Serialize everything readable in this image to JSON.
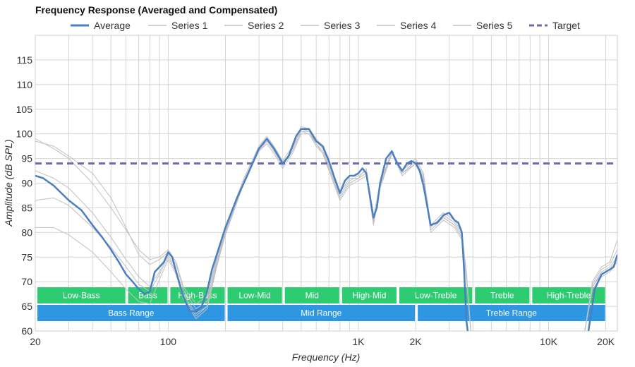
{
  "chart_data": {
    "type": "line",
    "title": "Frequency Response (Averaged and Compensated)",
    "xlabel": "Frequency (Hz)",
    "ylabel": "Amplitude (dB SPL)",
    "x_scale": "log",
    "xlim": [
      20,
      23000
    ],
    "ylim": [
      60,
      120
    ],
    "x_ticks": [
      {
        "value": 20,
        "label": "20"
      },
      {
        "value": 100,
        "label": "100"
      },
      {
        "value": 1000,
        "label": "1K"
      },
      {
        "value": 2000,
        "label": "2K"
      },
      {
        "value": 10000,
        "label": "10K"
      },
      {
        "value": 20000,
        "label": "20K"
      }
    ],
    "y_ticks": [
      60,
      65,
      70,
      75,
      80,
      85,
      90,
      95,
      100,
      105,
      110,
      115
    ],
    "grid": true,
    "legend_position": "top",
    "colors": {
      "average": "#4a7fc1",
      "series": "#c0c0c0",
      "target": "#6b6ba8",
      "band_green": "#2ecc71",
      "band_blue": "#2f96e2"
    },
    "series": [
      {
        "name": "Average",
        "x": [
          20,
          22,
          25,
          30,
          35,
          40,
          45,
          50,
          55,
          60,
          65,
          70,
          75,
          80,
          85,
          90,
          95,
          100,
          105,
          110,
          120,
          130,
          140,
          150,
          160,
          170,
          180,
          200,
          230,
          260,
          300,
          330,
          360,
          400,
          430,
          470,
          500,
          550,
          600,
          650,
          700,
          750,
          800,
          850,
          900,
          950,
          1000,
          1050,
          1100,
          1200,
          1250,
          1300,
          1400,
          1500,
          1600,
          1700,
          1800,
          1900,
          2000,
          2100,
          2200,
          2400,
          2600,
          2800,
          3000,
          3200,
          3350,
          3500,
          3600,
          3700,
          3900,
          15500,
          16500,
          17500,
          19000,
          20000,
          21000,
          22000,
          23000
        ],
        "y": [
          91.5,
          91.0,
          89.5,
          86.5,
          84.5,
          81.5,
          79.0,
          76.5,
          74.0,
          71.5,
          70.0,
          68.5,
          67.5,
          68.0,
          72.0,
          73.0,
          74.0,
          76.0,
          75.0,
          72.0,
          67.0,
          64.0,
          64.0,
          65.0,
          68.0,
          72.5,
          75.5,
          81.0,
          87.0,
          91.5,
          97.0,
          99.0,
          97.0,
          94.0,
          95.5,
          99.5,
          101.0,
          101.0,
          98.5,
          97.5,
          94.5,
          91.0,
          88.0,
          90.5,
          91.5,
          91.5,
          92.0,
          93.0,
          92.0,
          83.0,
          85.0,
          90.0,
          95.0,
          96.5,
          94.0,
          92.5,
          94.0,
          94.5,
          94.0,
          92.5,
          89.5,
          81.5,
          82.0,
          83.5,
          84.0,
          82.5,
          82.0,
          80.0,
          72.0,
          62.0,
          55.0,
          55.0,
          62.0,
          68.5,
          71.5,
          72.0,
          72.5,
          73.0,
          75.5
        ]
      },
      {
        "name": "Series 1",
        "x": [
          20,
          25,
          30,
          40,
          50,
          60,
          70,
          80,
          90,
          100,
          110,
          120,
          140,
          160,
          180,
          200,
          250,
          300,
          330,
          360,
          400,
          450,
          500,
          550,
          600,
          650,
          700,
          800,
          900,
          1000,
          1100,
          1200,
          1300,
          1500,
          1700,
          2000,
          2200,
          2400,
          2800,
          3200,
          3500,
          3700,
          3900,
          15500,
          17000,
          19000,
          21000,
          23000
        ],
        "y": [
          99.0,
          97.0,
          95.0,
          90.0,
          85.0,
          80.5,
          76.5,
          74.5,
          75.0,
          76.5,
          74.0,
          69.0,
          65.5,
          67.0,
          75.0,
          81.0,
          91.0,
          97.5,
          99.5,
          97.5,
          94.5,
          97.5,
          101.5,
          101.0,
          99.0,
          97.5,
          94.0,
          88.0,
          91.0,
          91.0,
          93.0,
          83.0,
          90.0,
          96.5,
          92.5,
          95.0,
          92.0,
          81.5,
          84.0,
          82.5,
          80.0,
          72.0,
          60.0,
          60.0,
          70.0,
          73.0,
          74.0,
          78.5
        ]
      },
      {
        "name": "Series 2",
        "x": [
          20,
          25,
          30,
          40,
          50,
          60,
          70,
          80,
          90,
          100,
          110,
          120,
          140,
          160,
          180,
          200,
          250,
          300,
          330,
          360,
          400,
          450,
          500,
          550,
          600,
          650,
          700,
          800,
          900,
          1000,
          1100,
          1200,
          1300,
          1500,
          1700,
          2000,
          2200,
          2400,
          2800,
          3200,
          3500,
          3700,
          3900,
          15500,
          17000,
          19000,
          21000,
          23000
        ],
        "y": [
          98.5,
          97.5,
          95.5,
          92.0,
          87.0,
          81.0,
          75.5,
          73.5,
          74.5,
          76.0,
          73.5,
          68.5,
          64.5,
          66.0,
          74.5,
          80.5,
          90.5,
          97.0,
          99.0,
          97.0,
          94.0,
          97.0,
          101.0,
          100.5,
          98.5,
          97.0,
          93.5,
          87.5,
          90.5,
          91.5,
          92.5,
          82.5,
          89.5,
          96.0,
          92.0,
          94.5,
          91.5,
          81.0,
          83.5,
          82.0,
          79.5,
          71.5,
          60.0,
          60.0,
          69.5,
          72.5,
          73.5,
          76.5
        ]
      },
      {
        "name": "Series 3",
        "x": [
          20,
          25,
          30,
          40,
          50,
          60,
          70,
          80,
          90,
          100,
          110,
          120,
          140,
          160,
          180,
          200,
          250,
          300,
          330,
          360,
          400,
          450,
          500,
          550,
          600,
          650,
          700,
          800,
          900,
          1000,
          1100,
          1200,
          1300,
          1500,
          1700,
          2000,
          2200,
          2400,
          2800,
          3200,
          3500,
          3700,
          3900,
          15500,
          17000,
          19000,
          21000,
          23000
        ],
        "y": [
          92.5,
          91.0,
          89.0,
          84.0,
          79.0,
          74.5,
          71.0,
          69.0,
          72.0,
          75.5,
          72.5,
          67.5,
          63.5,
          65.0,
          74.0,
          80.0,
          90.5,
          97.0,
          98.5,
          96.5,
          93.5,
          96.5,
          100.5,
          100.5,
          98.0,
          96.5,
          93.0,
          87.0,
          90.0,
          91.0,
          92.0,
          82.0,
          89.5,
          96.5,
          92.0,
          94.5,
          91.0,
          80.5,
          83.0,
          81.5,
          79.0,
          71.0,
          60.0,
          60.0,
          69.0,
          72.0,
          73.0,
          75.0
        ]
      },
      {
        "name": "Series 4",
        "x": [
          20,
          25,
          30,
          40,
          50,
          60,
          70,
          80,
          90,
          100,
          110,
          120,
          140,
          160,
          180,
          200,
          250,
          300,
          330,
          360,
          400,
          450,
          500,
          550,
          600,
          650,
          700,
          800,
          900,
          1000,
          1100,
          1200,
          1300,
          1500,
          1700,
          2000,
          2200,
          2400,
          2800,
          3200,
          3500,
          3700,
          3900,
          15500,
          17000,
          19000,
          21000,
          23000
        ],
        "y": [
          86.5,
          87.0,
          85.5,
          81.0,
          77.0,
          73.0,
          69.5,
          68.0,
          71.5,
          75.0,
          72.0,
          67.0,
          63.0,
          65.0,
          73.5,
          80.0,
          90.0,
          96.5,
          98.5,
          96.5,
          93.5,
          96.5,
          100.5,
          100.0,
          98.0,
          96.0,
          93.0,
          87.0,
          90.0,
          91.0,
          92.0,
          82.0,
          89.0,
          96.0,
          92.0,
          94.0,
          91.0,
          80.5,
          83.0,
          81.5,
          79.0,
          71.0,
          60.0,
          60.0,
          69.0,
          71.5,
          72.5,
          74.5
        ]
      },
      {
        "name": "Series 5",
        "x": [
          20,
          25,
          30,
          40,
          50,
          60,
          70,
          80,
          90,
          100,
          110,
          120,
          140,
          160,
          180,
          200,
          250,
          300,
          330,
          360,
          400,
          450,
          500,
          550,
          600,
          650,
          700,
          800,
          900,
          1000,
          1100,
          1200,
          1300,
          1500,
          1700,
          2000,
          2200,
          2400,
          2800,
          3200,
          3500,
          3700,
          3900,
          15500,
          17000,
          19000,
          21000,
          23000
        ],
        "y": [
          81.0,
          81.0,
          79.5,
          76.0,
          72.0,
          68.5,
          66.0,
          65.5,
          70.5,
          74.5,
          71.5,
          66.5,
          62.5,
          64.5,
          73.0,
          79.5,
          90.0,
          96.5,
          98.0,
          96.0,
          93.0,
          96.0,
          100.0,
          100.0,
          97.5,
          96.0,
          92.5,
          86.5,
          89.5,
          90.5,
          91.5,
          81.5,
          89.0,
          96.0,
          91.5,
          94.0,
          90.5,
          80.0,
          82.5,
          81.0,
          78.5,
          70.5,
          60.0,
          60.0,
          68.5,
          71.0,
          72.0,
          74.0
        ]
      },
      {
        "name": "Target",
        "x": [
          20,
          23000
        ],
        "y": [
          94,
          94
        ]
      }
    ],
    "bands": [
      {
        "label": "Low-Bass",
        "from": 20,
        "to": 60,
        "row": 1
      },
      {
        "label": "Bass",
        "from": 60,
        "to": 100,
        "row": 1
      },
      {
        "label": "High-Bass",
        "from": 100,
        "to": 200,
        "row": 1
      },
      {
        "label": "Low-Mid",
        "from": 200,
        "to": 400,
        "row": 1
      },
      {
        "label": "Mid",
        "from": 400,
        "to": 800,
        "row": 1
      },
      {
        "label": "High-Mid",
        "from": 800,
        "to": 1600,
        "row": 1
      },
      {
        "label": "Low-Treble",
        "from": 1600,
        "to": 4000,
        "row": 1
      },
      {
        "label": "Treble",
        "from": 4000,
        "to": 8000,
        "row": 1
      },
      {
        "label": "High-Treble",
        "from": 8000,
        "to": 20000,
        "row": 1
      },
      {
        "label": "Bass Range",
        "from": 20,
        "to": 200,
        "row": 2
      },
      {
        "label": "Mid Range",
        "from": 200,
        "to": 2000,
        "row": 2
      },
      {
        "label": "Treble Range",
        "from": 2000,
        "to": 20000,
        "row": 2
      }
    ]
  }
}
